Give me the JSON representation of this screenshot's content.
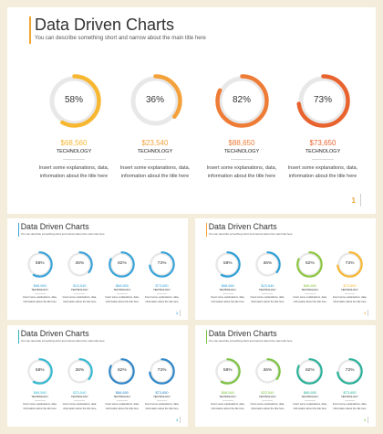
{
  "colors": {
    "background": "#f4eddc",
    "ring_track": "#e8e8e8"
  },
  "slides": [
    {
      "title": "Data Driven Charts",
      "subtitle": "You can describe something short and narrow about the main title here",
      "page": "1",
      "accent": "#f2a531",
      "items": [
        {
          "percent": 58,
          "label_pct": "58%",
          "amount": "$68,560",
          "label": "TECHNOLOGY",
          "desc": "Insert some explanations, data, information about the title here",
          "color": "#f7b731"
        },
        {
          "percent": 36,
          "label_pct": "36%",
          "amount": "$23,540",
          "label": "TECHNOLOGY",
          "desc": "Insert some explanations, data, information about the title here",
          "color": "#f4a13a"
        },
        {
          "percent": 82,
          "label_pct": "82%",
          "amount": "$88,650",
          "label": "TECHNOLOGY",
          "desc": "Insert some explanations, data, information about the title here",
          "color": "#ee7c36"
        },
        {
          "percent": 73,
          "label_pct": "73%",
          "amount": "$73,650",
          "label": "TECHNOLOGY",
          "desc": "Insert some explanations, data, information about the title here",
          "color": "#e8632e"
        }
      ]
    },
    {
      "title": "Data Driven Charts",
      "subtitle": "You can describe something short and narrow about the main title here",
      "page": "1",
      "accent": "#3aa3d8",
      "items": [
        {
          "percent": 58,
          "label_pct": "58%",
          "amount": "$68,560",
          "label": "TECHNOLOGY",
          "desc": "Insert some explanations, data, information about the title here",
          "color": "#3aa3d8"
        },
        {
          "percent": 36,
          "label_pct": "36%",
          "amount": "$23,540",
          "label": "TECHNOLOGY",
          "desc": "Insert some explanations, data, information about the title here",
          "color": "#3aa3d8"
        },
        {
          "percent": 82,
          "label_pct": "82%",
          "amount": "$88,650",
          "label": "TECHNOLOGY",
          "desc": "Insert some explanations, data, information about the title here",
          "color": "#3aa3d8"
        },
        {
          "percent": 73,
          "label_pct": "73%",
          "amount": "$73,650",
          "label": "TECHNOLOGY",
          "desc": "Insert some explanations, data, information about the title here",
          "color": "#3aa3d8"
        }
      ]
    },
    {
      "title": "Data Driven Charts",
      "subtitle": "You can describe something short and narrow about the main title here",
      "page": "1",
      "accent": "#f2a531",
      "items": [
        {
          "percent": 58,
          "label_pct": "58%",
          "amount": "$68,560",
          "label": "TECHNOLOGY",
          "desc": "Insert some explanations, data, information about the title here",
          "color": "#2f9fd6"
        },
        {
          "percent": 36,
          "label_pct": "36%",
          "amount": "$23,540",
          "label": "TECHNOLOGY",
          "desc": "Insert some explanations, data, information about the title here",
          "color": "#2f9fd6"
        },
        {
          "percent": 82,
          "label_pct": "82%",
          "amount": "$88,650",
          "label": "TECHNOLOGY",
          "desc": "Insert some explanations, data, information about the title here",
          "color": "#8cc63f"
        },
        {
          "percent": 73,
          "label_pct": "73%",
          "amount": "$73,650",
          "label": "TECHNOLOGY",
          "desc": "Insert some explanations, data, information about the title here",
          "color": "#f7b731"
        }
      ]
    },
    {
      "title": "Data Driven Charts",
      "subtitle": "You can describe something short and narrow about the main title here",
      "page": "1",
      "accent": "#2fb1b8",
      "items": [
        {
          "percent": 58,
          "label_pct": "58%",
          "amount": "$68,560",
          "label": "TECHNOLOGY",
          "desc": "Insert some explanations, data, information about the title here",
          "color": "#35b8d0"
        },
        {
          "percent": 36,
          "label_pct": "36%",
          "amount": "$23,540",
          "label": "TECHNOLOGY",
          "desc": "Insert some explanations, data, information about the title here",
          "color": "#35b8d0"
        },
        {
          "percent": 82,
          "label_pct": "82%",
          "amount": "$88,650",
          "label": "TECHNOLOGY",
          "desc": "Insert some explanations, data, information about the title here",
          "color": "#2f86c8"
        },
        {
          "percent": 73,
          "label_pct": "73%",
          "amount": "$73,650",
          "label": "TECHNOLOGY",
          "desc": "Insert some explanations, data, information about the title here",
          "color": "#2f86c8"
        }
      ]
    },
    {
      "title": "Data Driven Charts",
      "subtitle": "You can describe something short and narrow about the main title here",
      "page": "1",
      "accent": "#7cc242",
      "items": [
        {
          "percent": 58,
          "label_pct": "58%",
          "amount": "$68,560",
          "label": "TECHNOLOGY",
          "desc": "Insert some explanations, data, information about the title here",
          "color": "#7cc242"
        },
        {
          "percent": 36,
          "label_pct": "36%",
          "amount": "$23,540",
          "label": "TECHNOLOGY",
          "desc": "Insert some explanations, data, information about the title here",
          "color": "#7cc242"
        },
        {
          "percent": 82,
          "label_pct": "82%",
          "amount": "$88,650",
          "label": "TECHNOLOGY",
          "desc": "Insert some explanations, data, information about the title here",
          "color": "#2bb09a"
        },
        {
          "percent": 73,
          "label_pct": "73%",
          "amount": "$73,650",
          "label": "TECHNOLOGY",
          "desc": "Insert some explanations, data, information about the title here",
          "color": "#2bb09a"
        }
      ]
    }
  ]
}
